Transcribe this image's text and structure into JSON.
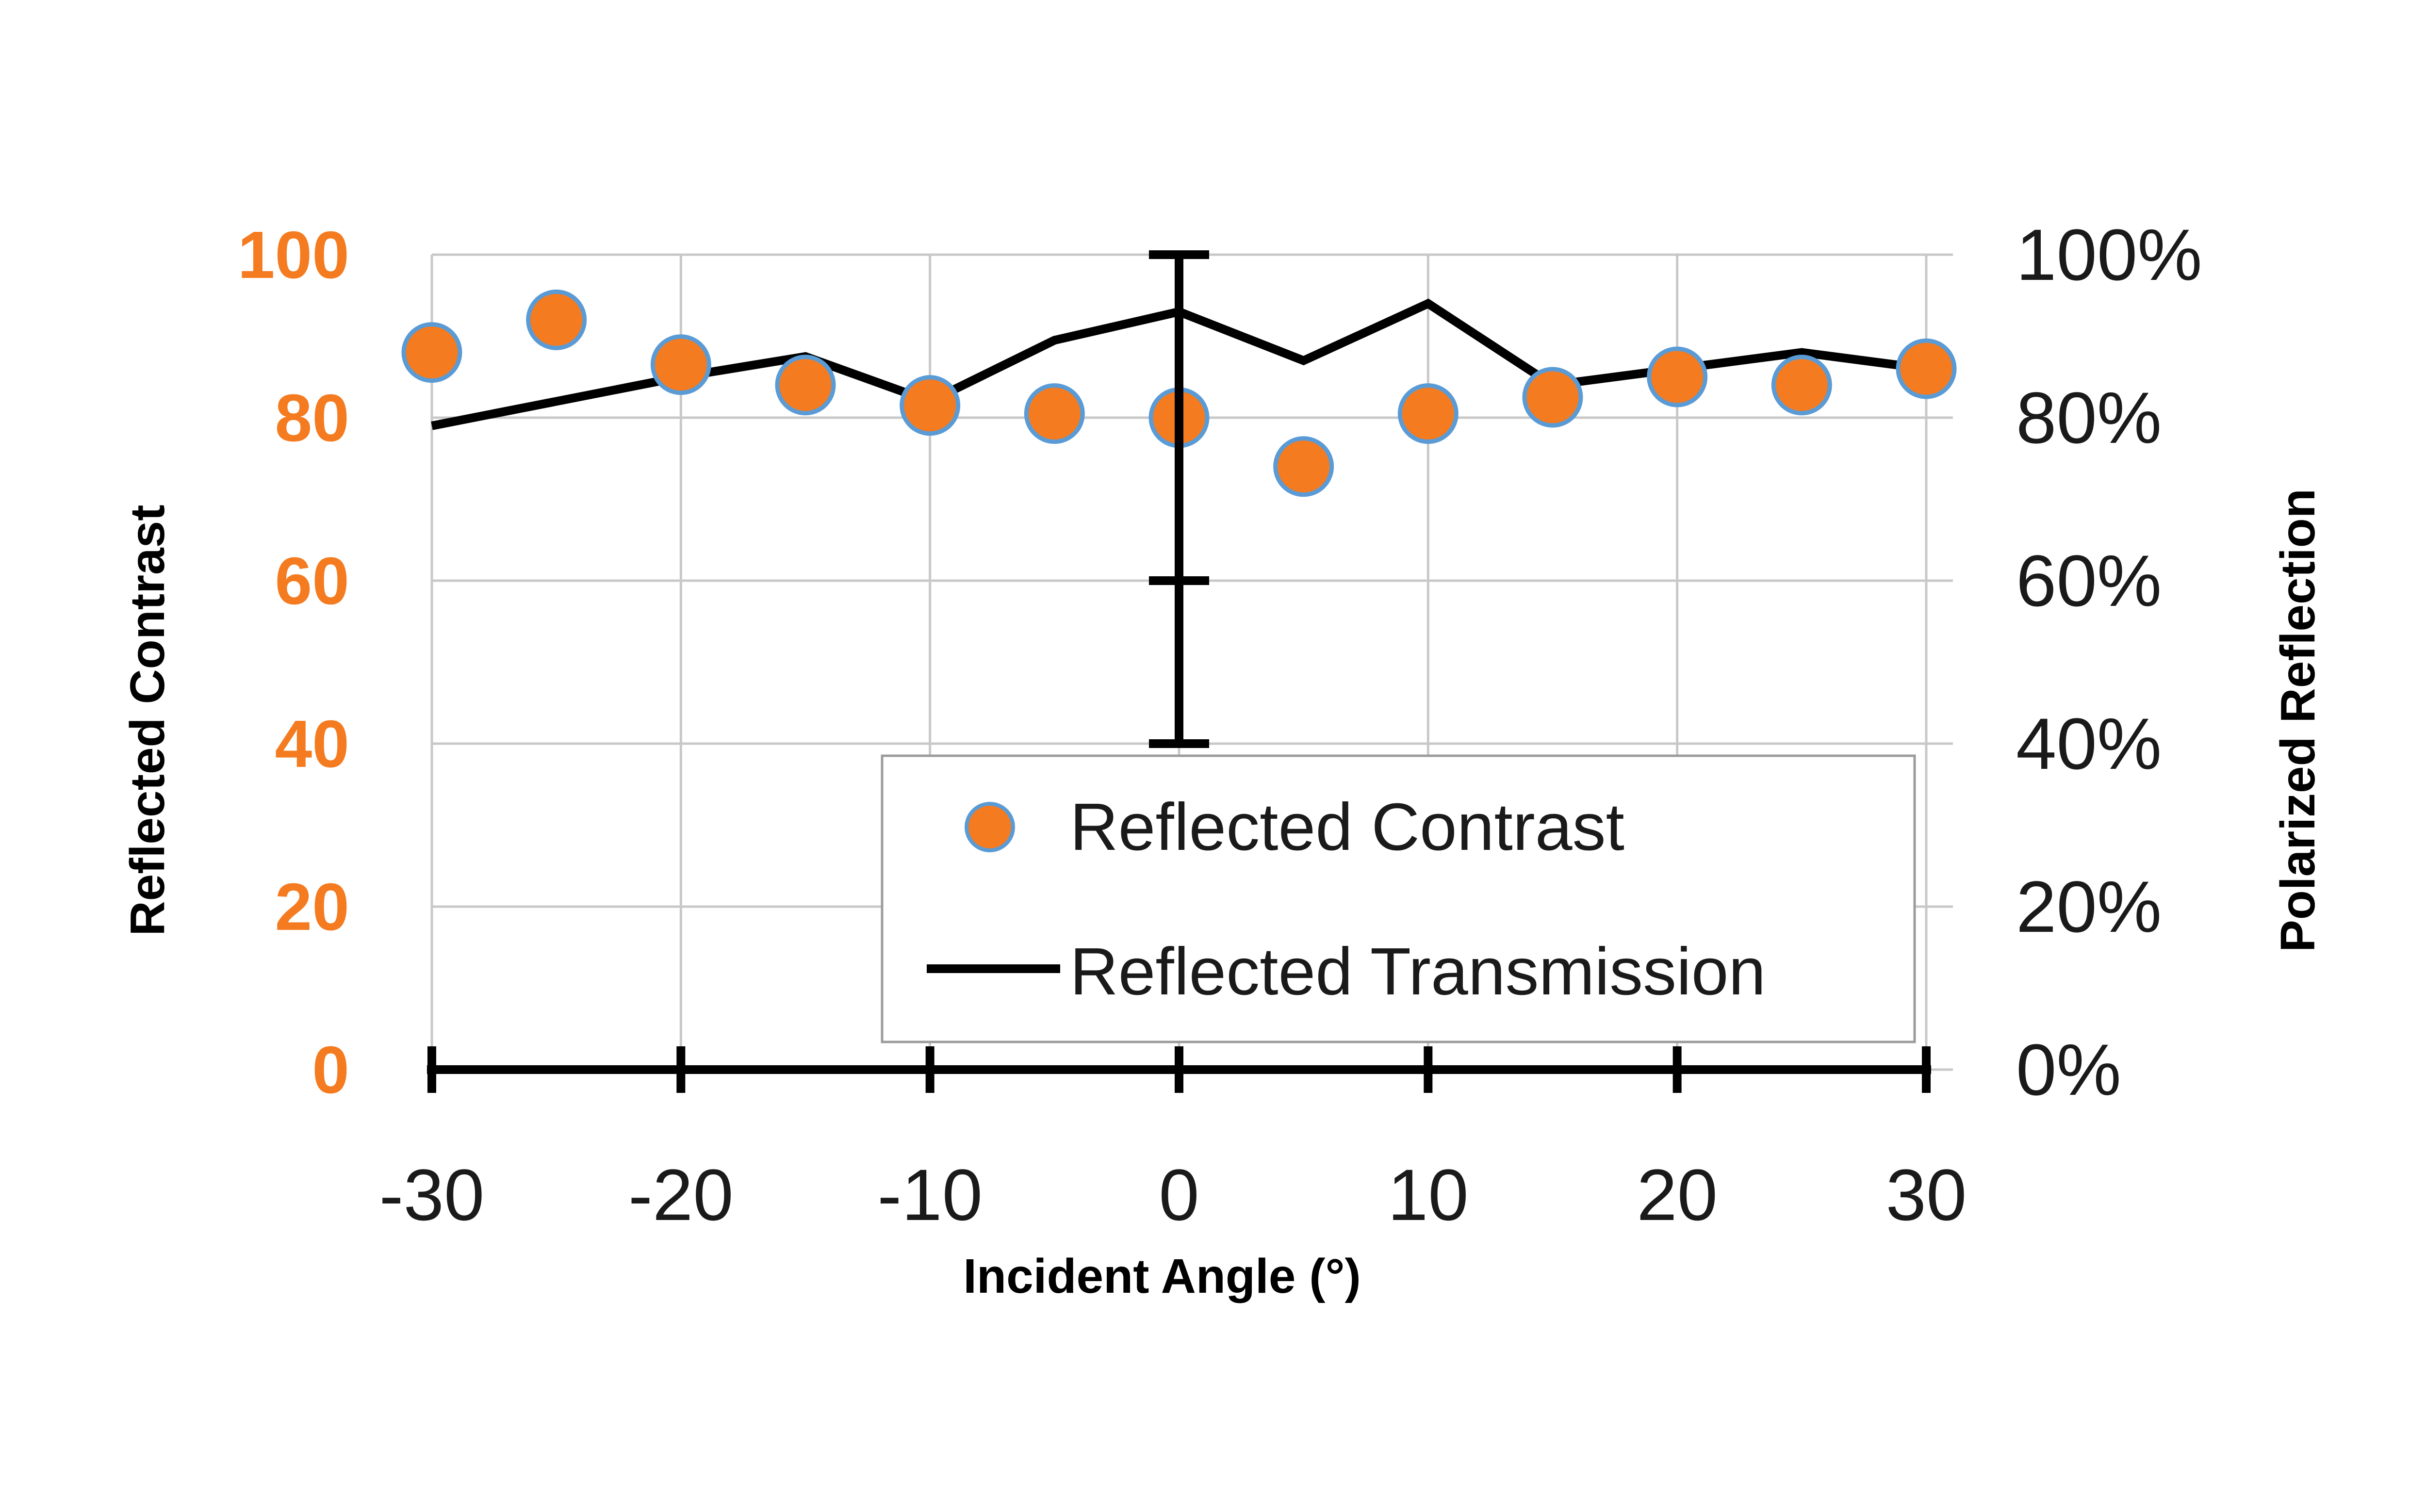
{
  "chart_data": {
    "type": "scatter+line",
    "title": "",
    "xlabel": "Incident Angle (°)",
    "ylabel_left": "Reflected Contrast",
    "ylabel_right": "Polarized Reflection",
    "xlim": [
      -30,
      30
    ],
    "ylim_left": [
      0,
      100
    ],
    "ylim_right": [
      0,
      100
    ],
    "x_ticks": [
      "-30",
      "-20",
      "-10",
      "0",
      "10",
      "20",
      "30"
    ],
    "x_tick_values": [
      -30,
      -20,
      -10,
      0,
      10,
      20,
      30
    ],
    "y_left_ticks": [
      "0",
      "20",
      "40",
      "60",
      "80",
      "100"
    ],
    "y_left_tick_values": [
      0,
      20,
      40,
      60,
      80,
      100
    ],
    "y_right_ticks": [
      "0%",
      "20%",
      "40%",
      "60%",
      "80%",
      "100%"
    ],
    "y_right_tick_values": [
      0,
      20,
      40,
      60,
      80,
      100
    ],
    "grid": true,
    "legend_position": "bottom-right",
    "series": [
      {
        "name": "Reflected Contrast",
        "kind": "scatter",
        "axis": "left",
        "color": "#f47b20",
        "edge_color": "#5b9bd5",
        "x": [
          -30,
          -25,
          -20,
          -15,
          -10,
          -5,
          0,
          5,
          10,
          15,
          20,
          25,
          30
        ],
        "y": [
          88,
          92,
          86.5,
          84,
          81.5,
          80.5,
          80,
          74,
          80.5,
          82.5,
          85,
          84,
          86
        ]
      },
      {
        "name": "Reflected Transmission",
        "kind": "line",
        "axis": "right",
        "color": "#000000",
        "x": [
          -30,
          -20,
          -15,
          -10,
          -5,
          0,
          5,
          10,
          15,
          20,
          25,
          30
        ],
        "y": [
          79,
          85,
          87.5,
          82,
          89.5,
          93,
          87,
          94,
          84,
          86,
          88,
          86
        ]
      }
    ],
    "error_bar": {
      "x": 0,
      "y": 80,
      "lower": 40,
      "upper": 100,
      "mid_caps": [
        60
      ]
    }
  }
}
